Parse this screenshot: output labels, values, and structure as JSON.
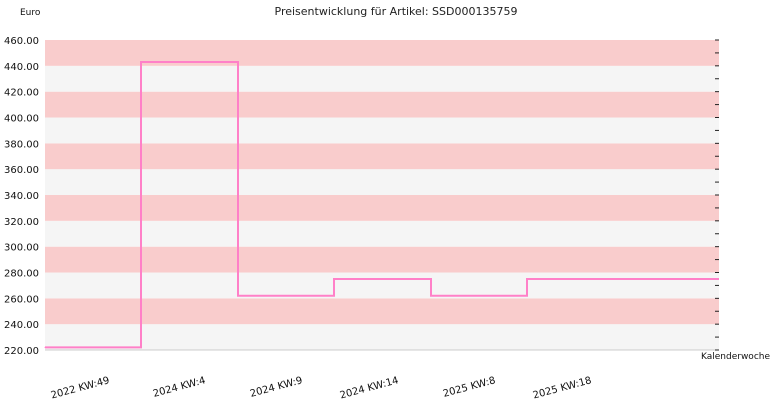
{
  "chart_data": {
    "type": "line",
    "step": true,
    "title": "Preisentwicklung für Artikel: SSD000135759",
    "ylabel": "Euro",
    "xlabel": "Kalenderwoche",
    "ylim": [
      220,
      460
    ],
    "y_ticks": [
      "220.00",
      "240.00",
      "260.00",
      "280.00",
      "300.00",
      "320.00",
      "340.00",
      "360.00",
      "380.00",
      "400.00",
      "420.00",
      "440.00",
      "460.00"
    ],
    "x_tick_labels": [
      "2022 KW:49",
      "2024 KW:4",
      "2024 KW:9",
      "2024 KW:14",
      "2025 KW:8",
      "2025 KW:18"
    ],
    "series": [
      {
        "color": "#ff80c8",
        "points": [
          {
            "x": "2022 KW:49",
            "y": 222
          },
          {
            "x": "2024 KW:4",
            "y": 222
          },
          {
            "x": "2024 KW:4",
            "y": 443
          },
          {
            "x": "2024 KW:9",
            "y": 443
          },
          {
            "x": "2024 KW:9",
            "y": 262
          },
          {
            "x": "2024 KW:14",
            "y": 262
          },
          {
            "x": "2024 KW:14",
            "y": 275
          },
          {
            "x": "2025 KW:8",
            "y": 275
          },
          {
            "x": "2025 KW:8",
            "y": 262
          },
          {
            "x": "2025 KW:18",
            "y": 262
          },
          {
            "x": "2025 KW:18",
            "y": 275
          }
        ]
      }
    ],
    "band_colors": [
      "#f5f5f5",
      "#f9cccc"
    ],
    "grid": false
  }
}
